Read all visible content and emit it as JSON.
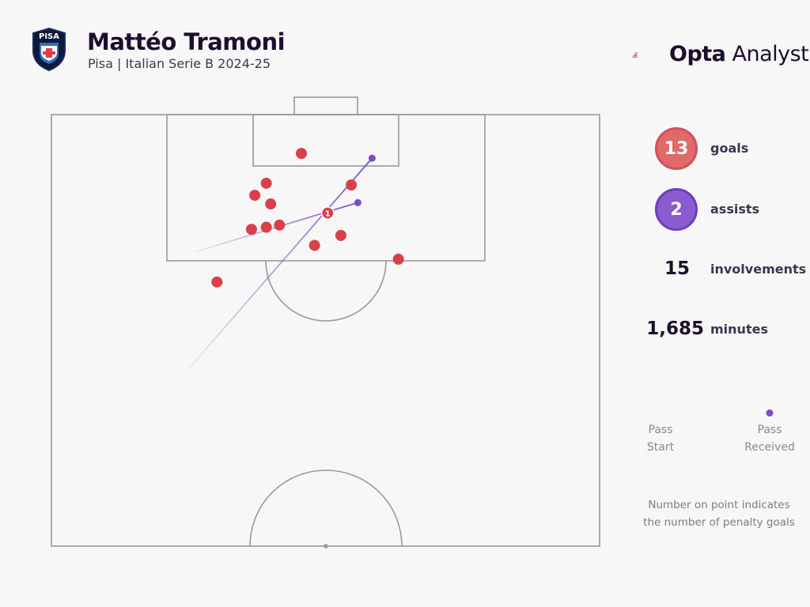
{
  "header": {
    "player_name": "Mattéo Tramoni",
    "subtitle": "Pisa | Italian Serie B 2024-25",
    "crest_text": "PISA",
    "brand_primary": "Opta",
    "brand_secondary": "Analyst"
  },
  "stats": {
    "goals_value": "13",
    "goals_label": "goals",
    "assists_value": "2",
    "assists_label": "assists",
    "involvements_value": "15",
    "involvements_label": "involvements",
    "minutes_value": "1,685",
    "minutes_label": "minutes"
  },
  "legend": {
    "start_line1": "Pass",
    "start_line2": "Start",
    "end_line1": "Pass",
    "end_line2": "Received"
  },
  "note": {
    "line1": "Number on point indicates",
    "line2": "the number of penalty goals"
  },
  "colors": {
    "goal": "#d9404a",
    "assist": "#7c4ec4",
    "pitch_line": "#9a9a9a",
    "brand_accent": "#d9376e"
  },
  "chart_data": {
    "type": "scatter",
    "title": "Mattéo Tramoni",
    "subtitle": "Pisa | Italian Serie B 2024-25",
    "coordinate_system": "half-pitch, x = 0-100 across pitch width, y = metres-percent from goal line (0 = goal line, 100 = halfway line)",
    "goals": [
      {
        "x": 45.6,
        "y": 9.0,
        "penalty_goals": 0
      },
      {
        "x": 39.2,
        "y": 15.9,
        "penalty_goals": 0
      },
      {
        "x": 37.1,
        "y": 18.7,
        "penalty_goals": 0
      },
      {
        "x": 40.0,
        "y": 20.7,
        "penalty_goals": 0
      },
      {
        "x": 54.7,
        "y": 16.3,
        "penalty_goals": 0
      },
      {
        "x": 50.4,
        "y": 22.8,
        "penalty_goals": 1
      },
      {
        "x": 36.5,
        "y": 26.6,
        "penalty_goals": 0
      },
      {
        "x": 39.2,
        "y": 26.1,
        "penalty_goals": 0
      },
      {
        "x": 41.6,
        "y": 25.6,
        "penalty_goals": 0
      },
      {
        "x": 48.0,
        "y": 30.3,
        "penalty_goals": 0
      },
      {
        "x": 52.8,
        "y": 28.0,
        "penalty_goals": 0
      },
      {
        "x": 63.3,
        "y": 33.5,
        "penalty_goals": 0
      },
      {
        "x": 30.2,
        "y": 38.8,
        "penalty_goals": 0
      }
    ],
    "assists": [
      {
        "start_x": 24.9,
        "start_y": 59.1,
        "end_x": 58.5,
        "end_y": 10.1
      },
      {
        "start_x": 26.2,
        "start_y": 31.8,
        "end_x": 55.9,
        "end_y": 20.4
      }
    ]
  }
}
